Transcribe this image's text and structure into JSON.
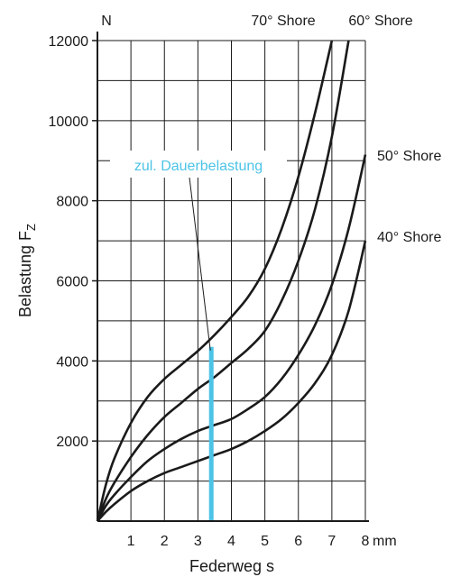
{
  "chart_data": {
    "type": "line",
    "title": "",
    "xlabel": "Federweg s",
    "x_unit": "mm",
    "ylabel_main": "Belastung F",
    "ylabel_sub": "Z",
    "y_unit": "N",
    "xlim": [
      0,
      8
    ],
    "ylim": [
      0,
      12000
    ],
    "x_ticks": [
      1,
      2,
      3,
      4,
      5,
      6,
      7,
      8
    ],
    "y_ticks": [
      2000,
      4000,
      6000,
      8000,
      10000,
      12000
    ],
    "grid": true,
    "colors": {
      "curve": "#1a1a1a",
      "grid": "#1a1a1a",
      "limit": "#4cc3e6"
    },
    "series": [
      {
        "name": "70° Shore",
        "x": [
          0,
          0.25,
          0.5,
          1,
          1.5,
          2,
          2.5,
          3,
          3.5,
          4,
          4.5,
          5,
          5.5,
          6,
          6.5,
          7
        ],
        "y": [
          0,
          900,
          1550,
          2450,
          3100,
          3550,
          3900,
          4250,
          4650,
          5100,
          5600,
          6300,
          7300,
          8600,
          10200,
          12000
        ]
      },
      {
        "name": "60° Shore",
        "x": [
          0,
          0.25,
          0.5,
          1,
          1.5,
          2,
          2.5,
          3,
          3.5,
          4,
          4.5,
          5,
          5.5,
          6,
          6.5,
          7,
          7.5
        ],
        "y": [
          0,
          550,
          950,
          1600,
          2150,
          2600,
          2950,
          3300,
          3600,
          3950,
          4300,
          4750,
          5500,
          6500,
          7800,
          9600,
          12000
        ]
      },
      {
        "name": "50° Shore",
        "x": [
          0,
          0.25,
          0.5,
          1,
          1.5,
          2,
          2.5,
          3,
          3.5,
          4,
          4.5,
          5,
          5.5,
          6,
          6.5,
          7,
          7.5,
          8
        ],
        "y": [
          0,
          380,
          650,
          1100,
          1500,
          1800,
          2050,
          2250,
          2400,
          2550,
          2800,
          3100,
          3550,
          4150,
          4900,
          5900,
          7300,
          9150
        ]
      },
      {
        "name": "40° Shore",
        "x": [
          0,
          0.25,
          0.5,
          1,
          1.5,
          2,
          2.5,
          3,
          3.5,
          4,
          4.5,
          5,
          5.5,
          6,
          6.5,
          7,
          7.5,
          8
        ],
        "y": [
          0,
          230,
          420,
          750,
          1000,
          1200,
          1350,
          1500,
          1650,
          1800,
          2000,
          2250,
          2550,
          2950,
          3450,
          4150,
          5250,
          7000
        ]
      }
    ],
    "annotation": {
      "text": "zul. Dauerbelastung",
      "x": 3.4,
      "y_top": 4350
    }
  }
}
